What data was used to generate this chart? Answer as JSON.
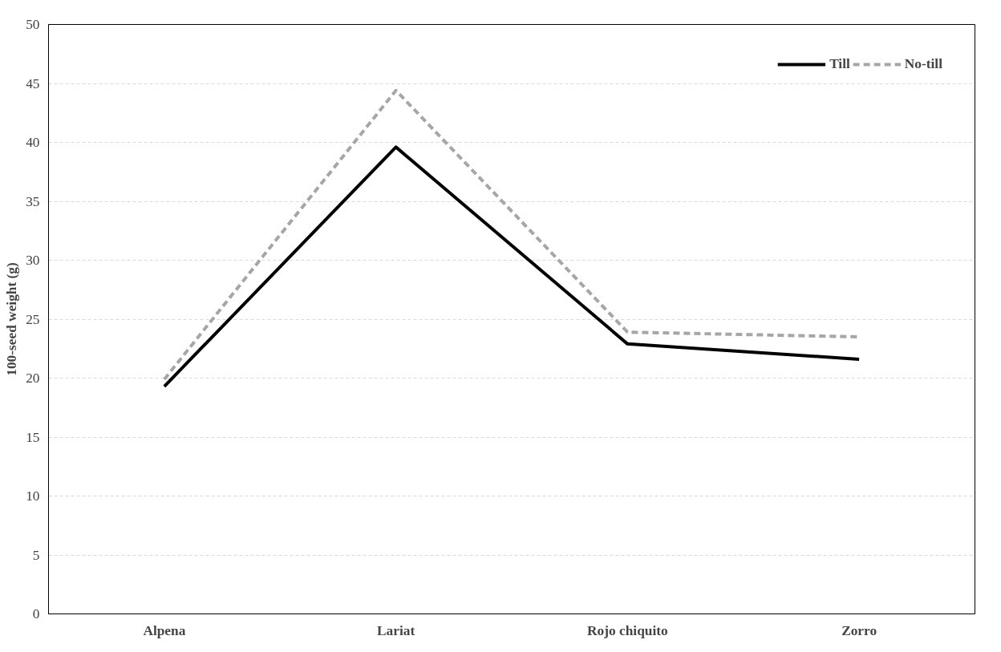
{
  "chart_data": {
    "type": "line",
    "ylabel": "100-seed weight (g)",
    "categories": [
      "Alpena",
      "Lariat",
      "Rojo chiquito",
      "Zorro"
    ],
    "series": [
      {
        "name": "Till",
        "color": "#000000",
        "line_style": "solid",
        "values": [
          19.3,
          39.6,
          22.9,
          21.6
        ]
      },
      {
        "name": "No-till",
        "color": "#a6a6a6",
        "line_style": "dashed",
        "values": [
          19.9,
          44.4,
          23.9,
          23.5
        ]
      }
    ],
    "ylim": [
      0,
      50
    ],
    "yticks": [
      0,
      5,
      10,
      15,
      20,
      25,
      30,
      35,
      40,
      45,
      50
    ],
    "grid": "y",
    "legend": "top right"
  }
}
